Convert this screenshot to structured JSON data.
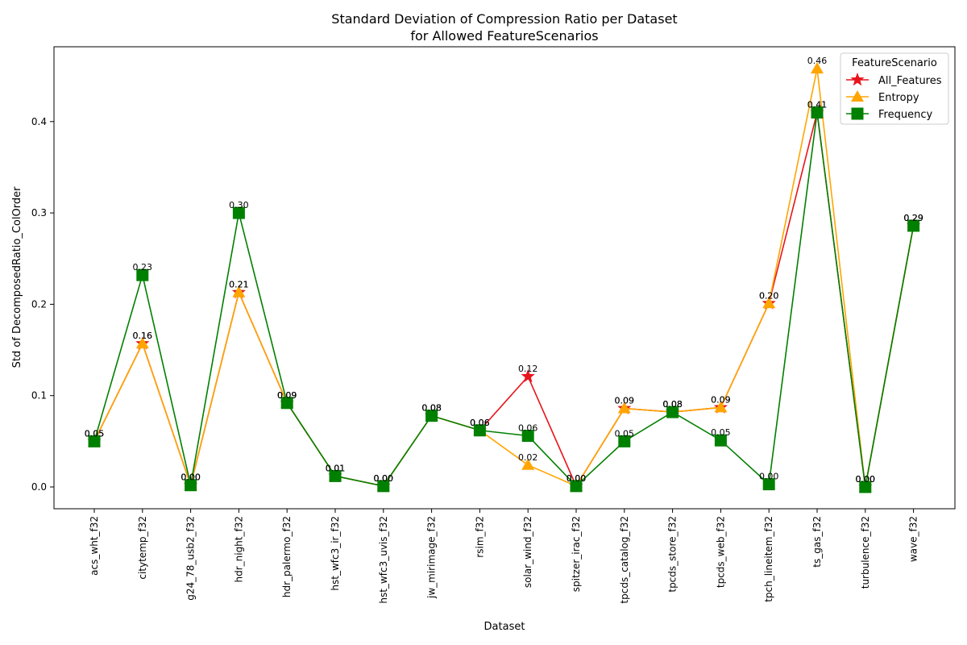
{
  "chart_data": {
    "type": "line",
    "title": [
      "Standard Deviation of Compression Ratio per Dataset",
      "for Allowed FeatureScenarios"
    ],
    "xlabel": "Dataset",
    "ylabel": "Std of DecomposedRatio_ColOrder",
    "ylim": [
      -0.025,
      0.483
    ],
    "yticks": [
      0.0,
      0.1,
      0.2,
      0.3,
      0.4
    ],
    "ytick_labels": [
      "0.0",
      "0.1",
      "0.2",
      "0.3",
      "0.4"
    ],
    "grid": false,
    "legend": {
      "title": "FeatureScenario",
      "placement": "top-right"
    },
    "categories": [
      "acs_wht_f32",
      "citytemp_f32",
      "g24_78_usb2_f32",
      "hdr_night_f32",
      "hdr_palermo_f32",
      "hst_wfc3_ir_f32",
      "hst_wfc3_uvis_f32",
      "jw_mirimage_f32",
      "rsim_f32",
      "solar_wind_f32",
      "spitzer_irac_f32",
      "tpcds_catalog_f32",
      "tpcds_store_f32",
      "tpcds_web_f32",
      "tpch_lineitem_f32",
      "ts_gas_f32",
      "turbulence_f32",
      "wave_f32"
    ],
    "series": [
      {
        "name": "All_Features",
        "color": "#e8141c",
        "marker": "star",
        "values": [
          0.05,
          0.157,
          0.002,
          0.213,
          0.092,
          0.012,
          0.001,
          0.078,
          0.062,
          0.121,
          0.001,
          0.086,
          0.082,
          0.087,
          0.201,
          0.41,
          0.0,
          0.286
        ],
        "labels": [
          "0.05",
          "0.16",
          "0.00",
          "0.21",
          "0.09",
          "0.01",
          "0.00",
          "0.08",
          "0.06",
          "0.12",
          "0.00",
          "0.09",
          "0.08",
          "0.09",
          "0.20",
          "0.41",
          "0.00",
          "0.29"
        ]
      },
      {
        "name": "Entropy",
        "color": "#ffa500",
        "marker": "triangle",
        "values": [
          0.05,
          0.157,
          0.002,
          0.213,
          0.092,
          0.012,
          0.001,
          0.078,
          0.062,
          0.024,
          0.001,
          0.086,
          0.082,
          0.087,
          0.201,
          0.458,
          0.0,
          0.286
        ],
        "labels": [
          "0.05",
          "0.16",
          "0.00",
          "0.21",
          "0.09",
          "0.01",
          "0.00",
          "0.08",
          "0.06",
          "0.02",
          "0.00",
          "0.09",
          "0.08",
          "0.09",
          "0.20",
          "0.46",
          "0.00",
          "0.29"
        ]
      },
      {
        "name": "Frequency",
        "color": "#008000",
        "marker": "square",
        "values": [
          0.05,
          0.232,
          0.002,
          0.3,
          0.092,
          0.012,
          0.001,
          0.078,
          0.062,
          0.056,
          0.001,
          0.05,
          0.082,
          0.051,
          0.003,
          0.41,
          0.0,
          0.286
        ],
        "labels": [
          "0.05",
          "0.23",
          "0.00",
          "0.30",
          "0.09",
          "0.01",
          "0.00",
          "0.08",
          "0.06",
          "0.06",
          "0.00",
          "0.05",
          "0.08",
          "0.05",
          "0.00",
          "0.41",
          "0.00",
          "0.29"
        ]
      }
    ]
  }
}
